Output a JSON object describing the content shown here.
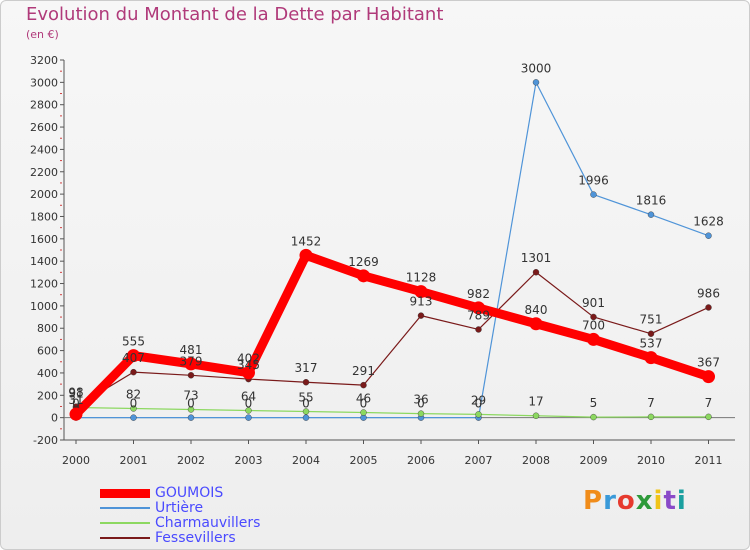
{
  "header": {
    "title": "Evolution du Montant de la Dette par Habitant",
    "subtitle": "(en €)"
  },
  "logo": {
    "text": "Proxiti",
    "colors": [
      "#f08c1a",
      "#3a9ad9",
      "#e63a2e",
      "#2e9a3a",
      "#f0c41a",
      "#8a4ac8",
      "#1aa0a0"
    ]
  },
  "chart_data": {
    "type": "line",
    "title": "Evolution du Montant de la Dette par Habitant",
    "subtitle": "(en €)",
    "xlabel": "",
    "ylabel": "",
    "x": [
      "2000",
      "2001",
      "2002",
      "2003",
      "2004",
      "2005",
      "2006",
      "2007",
      "2008",
      "2009",
      "2010",
      "2011"
    ],
    "ylim": [
      -200,
      3200
    ],
    "yticks": [
      -200,
      0,
      200,
      400,
      600,
      800,
      1000,
      1200,
      1400,
      1600,
      1800,
      2000,
      2200,
      2400,
      2600,
      2800,
      3000,
      3200
    ],
    "grid": false,
    "legend_position": "bottom-left",
    "series": [
      {
        "name": "GOUMOIS",
        "color": "#ff0000",
        "values": [
          31,
          555,
          481,
          402,
          1452,
          1269,
          1128,
          982,
          840,
          700,
          537,
          367
        ],
        "labels": [
          "31",
          "555",
          "481",
          "402",
          "1452",
          "1269",
          "1128",
          "982",
          "840",
          "700",
          "537",
          "367"
        ]
      },
      {
        "name": "Urtière",
        "color": "#4f94d8",
        "values": [
          0,
          0,
          0,
          0,
          0,
          0,
          0,
          0,
          3000,
          1996,
          1816,
          1628
        ],
        "labels": [
          "0",
          "0",
          "0",
          "0",
          "0",
          "0",
          "0",
          "0",
          "3000",
          "1996",
          "1816",
          "1628"
        ]
      },
      {
        "name": "Charmauvillers",
        "color": "#8cd860",
        "values": [
          91,
          82,
          73,
          64,
          55,
          46,
          36,
          29,
          17,
          5,
          7,
          7
        ],
        "labels": [
          "91",
          "82",
          "73",
          "64",
          "55",
          "46",
          "36",
          "29",
          "17",
          "5",
          "7",
          "7"
        ]
      },
      {
        "name": "Fessevillers",
        "color": "#7a1a1a",
        "values": [
          98,
          407,
          379,
          345,
          317,
          291,
          913,
          789,
          1301,
          901,
          751,
          986
        ],
        "labels": [
          "98",
          "407",
          "379",
          "345",
          "317",
          "291",
          "913",
          "789",
          "1301",
          "901",
          "751",
          "986"
        ]
      }
    ]
  }
}
